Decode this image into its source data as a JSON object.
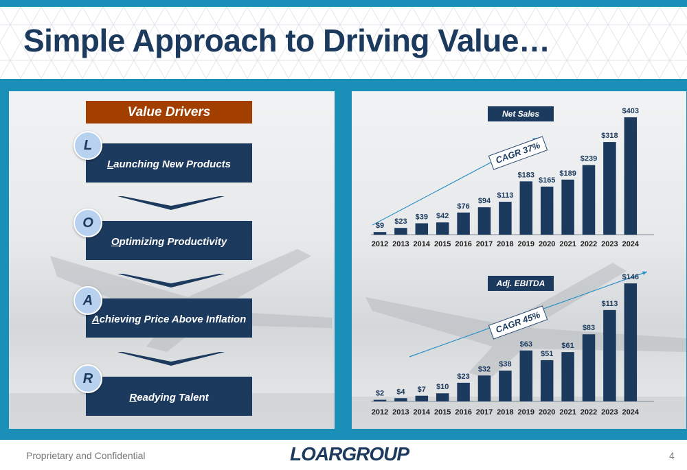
{
  "slide": {
    "title": "Simple Approach to Driving Value…",
    "footer_left": "Proprietary and Confidential",
    "logo_text": "LOARGROUP",
    "page_number": "4"
  },
  "value_drivers": {
    "header": "Value Drivers",
    "items": [
      {
        "letter": "L",
        "first": "L",
        "rest": "aunching New Products"
      },
      {
        "letter": "O",
        "first": "O",
        "rest": "ptimizing Productivity"
      },
      {
        "letter": "A",
        "first": "A",
        "rest": "chieving Price Above Inflation"
      },
      {
        "letter": "R",
        "first": "R",
        "rest": "eadying Talent"
      }
    ]
  },
  "colors": {
    "navy": "#1c3a5e",
    "accent_blue": "#1a8fb8",
    "header_orange": "#a23e00",
    "circle_blue": "#b7d1ee"
  },
  "chart_data": [
    {
      "type": "bar",
      "title": "Net Sales",
      "annotation": "CAGR 37%",
      "categories": [
        "2012",
        "2013",
        "2014",
        "2015",
        "2016",
        "2017",
        "2018",
        "2019",
        "2020",
        "2021",
        "2022",
        "2023",
        "2024"
      ],
      "values": [
        9,
        23,
        39,
        42,
        76,
        94,
        113,
        183,
        165,
        189,
        239,
        318,
        403
      ],
      "data_labels": [
        "$9",
        "$23",
        "$39",
        "$42",
        "$76",
        "$94",
        "$113",
        "$183",
        "$165",
        "$189",
        "$239",
        "$318",
        "$403"
      ],
      "ylim": [
        0,
        403
      ]
    },
    {
      "type": "bar",
      "title": "Adj. EBITDA",
      "annotation": "CAGR 45%",
      "categories": [
        "2012",
        "2013",
        "2014",
        "2015",
        "2016",
        "2017",
        "2018",
        "2019",
        "2020",
        "2021",
        "2022",
        "2023",
        "2024"
      ],
      "values": [
        2,
        4,
        7,
        10,
        23,
        32,
        38,
        63,
        51,
        61,
        83,
        113,
        146
      ],
      "data_labels": [
        "$2",
        "$4",
        "$7",
        "$10",
        "$23",
        "$32",
        "$38",
        "$63",
        "$51",
        "$61",
        "$83",
        "$113",
        "$146"
      ],
      "ylim": [
        0,
        146
      ]
    }
  ]
}
